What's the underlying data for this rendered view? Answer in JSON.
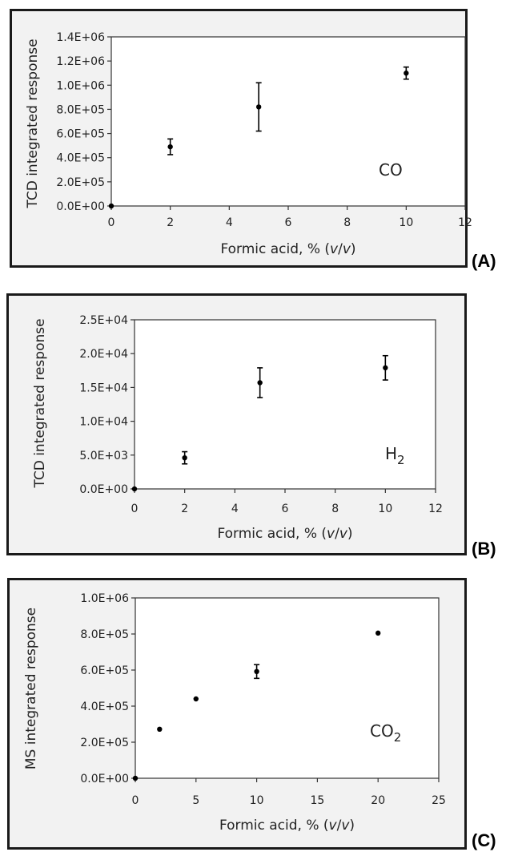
{
  "panels": [
    {
      "label_open": "(",
      "label_letter": "A",
      "label_close": ")"
    },
    {
      "label_open": "(",
      "label_letter": "B",
      "label_close": ")"
    },
    {
      "label_open": "(",
      "label_letter": "C",
      "label_close": ")"
    }
  ],
  "chart_data": [
    {
      "type": "scatter",
      "xlabel": "Formic acid, % (v/v)",
      "xlabel_parts": [
        "Formic acid, % (",
        "v",
        "/",
        "v",
        ")"
      ],
      "ylabel": "TCD integrated response",
      "annotation": {
        "main": "CO",
        "sub": ""
      },
      "xlim": [
        0,
        12
      ],
      "ylim": [
        0,
        1400000
      ],
      "xticks": [
        0,
        2,
        4,
        6,
        8,
        10,
        12
      ],
      "xtick_labels": [
        "0",
        "2",
        "4",
        "6",
        "8",
        "10",
        "12"
      ],
      "yticks": [
        0,
        200000,
        400000,
        600000,
        800000,
        1000000,
        1200000,
        1400000
      ],
      "ytick_labels": [
        "0.0E+00",
        "2.0E+05",
        "4.0E+05",
        "6.0E+05",
        "8.0E+05",
        "1.0E+06",
        "1.2E+06",
        "1.4E+06"
      ],
      "grid": false,
      "points": [
        {
          "x": 0,
          "y": 0,
          "err": 0
        },
        {
          "x": 2,
          "y": 490000,
          "err": 65000
        },
        {
          "x": 5,
          "y": 820000,
          "err": 200000
        },
        {
          "x": 10,
          "y": 1100000,
          "err": 50000
        }
      ]
    },
    {
      "type": "scatter",
      "xlabel": "Formic acid, % (v/v)",
      "xlabel_parts": [
        "Formic acid, % (",
        "v",
        "/",
        "v",
        ")"
      ],
      "ylabel": "TCD integrated response",
      "annotation": {
        "main": "H",
        "sub": "2"
      },
      "xlim": [
        0,
        12
      ],
      "ylim": [
        0,
        25000
      ],
      "xticks": [
        0,
        2,
        4,
        6,
        8,
        10,
        12
      ],
      "xtick_labels": [
        "0",
        "2",
        "4",
        "6",
        "8",
        "10",
        "12"
      ],
      "yticks": [
        0,
        5000,
        10000,
        15000,
        20000,
        25000
      ],
      "ytick_labels": [
        "0.0E+00",
        "5.0E+03",
        "1.0E+04",
        "1.5E+04",
        "2.0E+04",
        "2.5E+04"
      ],
      "grid": false,
      "points": [
        {
          "x": 0,
          "y": 0,
          "err": 0
        },
        {
          "x": 2,
          "y": 4600,
          "err": 900
        },
        {
          "x": 5,
          "y": 15700,
          "err": 2200
        },
        {
          "x": 10,
          "y": 17900,
          "err": 1800
        }
      ]
    },
    {
      "type": "scatter",
      "xlabel": "Formic acid, % (v/v)",
      "xlabel_parts": [
        "Formic acid, % (",
        "v",
        "/",
        "v",
        ")"
      ],
      "ylabel": "MS integrated response",
      "annotation": {
        "main": "CO",
        "sub": "2"
      },
      "xlim": [
        0,
        25
      ],
      "ylim": [
        0,
        1000000
      ],
      "xticks": [
        0,
        5,
        10,
        15,
        20,
        25
      ],
      "xtick_labels": [
        "0",
        "5",
        "10",
        "15",
        "20",
        "25"
      ],
      "yticks": [
        0,
        200000,
        400000,
        600000,
        800000,
        1000000
      ],
      "ytick_labels": [
        "0.0E+00",
        "2.0E+05",
        "4.0E+05",
        "6.0E+05",
        "8.0E+05",
        "1.0E+06"
      ],
      "grid": false,
      "points": [
        {
          "x": 0,
          "y": 0,
          "err": 0
        },
        {
          "x": 2,
          "y": 272000,
          "err": 0
        },
        {
          "x": 5,
          "y": 440000,
          "err": 0
        },
        {
          "x": 10,
          "y": 592000,
          "err": 38000
        },
        {
          "x": 20,
          "y": 805000,
          "err": 0
        }
      ]
    }
  ]
}
